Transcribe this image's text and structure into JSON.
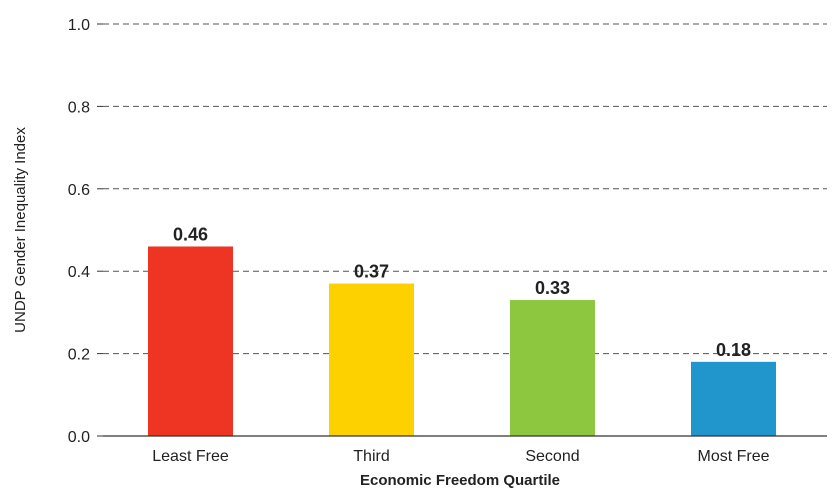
{
  "chart_data": {
    "type": "bar",
    "categories": [
      "Least Free",
      "Third",
      "Second",
      "Most Free"
    ],
    "values": [
      0.46,
      0.37,
      0.33,
      0.18
    ],
    "value_labels": [
      "0.46",
      "0.37",
      "0.33",
      "0.18"
    ],
    "colors": [
      "#ee3524",
      "#fdd000",
      "#8dc63f",
      "#2196cd"
    ],
    "title": "",
    "xlabel": "Economic Freedom Quartile",
    "ylabel": "UNDP Gender Inequality Index",
    "ylim": [
      0,
      1.0
    ],
    "yticks": [
      0.0,
      0.2,
      0.4,
      0.6,
      0.8,
      1.0
    ],
    "ytick_labels": [
      "0.0",
      "0.2",
      "0.4",
      "0.6",
      "0.8",
      "1.0"
    ],
    "grid": true,
    "legend": "none"
  }
}
